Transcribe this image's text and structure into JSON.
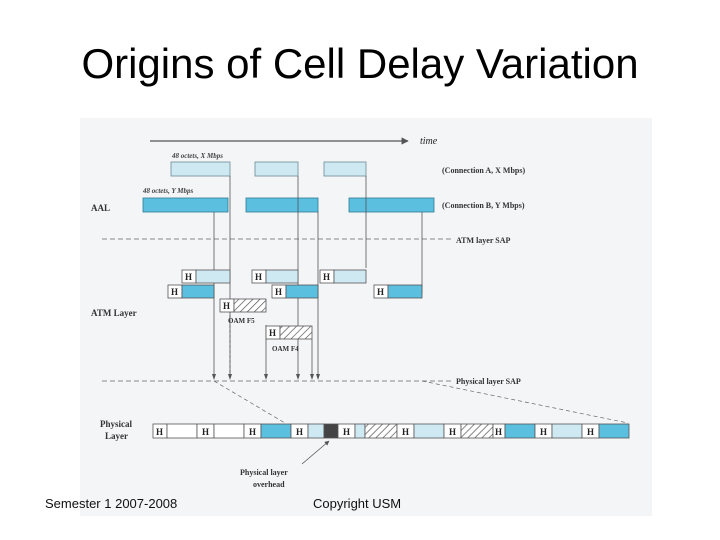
{
  "slide": {
    "title": "Origins of Cell Delay Variation"
  },
  "footer": {
    "left": "Semester 1 2007-2008",
    "right": "Copyright USM"
  },
  "diagram": {
    "time_label": "time",
    "connection_a": {
      "label": "(Connection A, X Mbps)",
      "rate_note": "48 octets, X Mbps",
      "color": "#cfe9f3"
    },
    "connection_b": {
      "label": "(Connection B, Y Mbps)",
      "rate_note": "48 octets, Y Mbps",
      "color": "#5bbfe0"
    },
    "layers": {
      "aal": "AAL",
      "atm": "ATM Layer",
      "physical_line1": "Physical",
      "physical_line2": "Layer"
    },
    "saps": {
      "atm": "ATM layer SAP",
      "physical": "Physical layer SAP"
    },
    "header_mark": "H",
    "oam_f5": "OAM F5",
    "oam_f4": "OAM F4",
    "overhead_line1": "Physical layer",
    "overhead_line2": "overhead",
    "overhead_color": "#444444"
  }
}
